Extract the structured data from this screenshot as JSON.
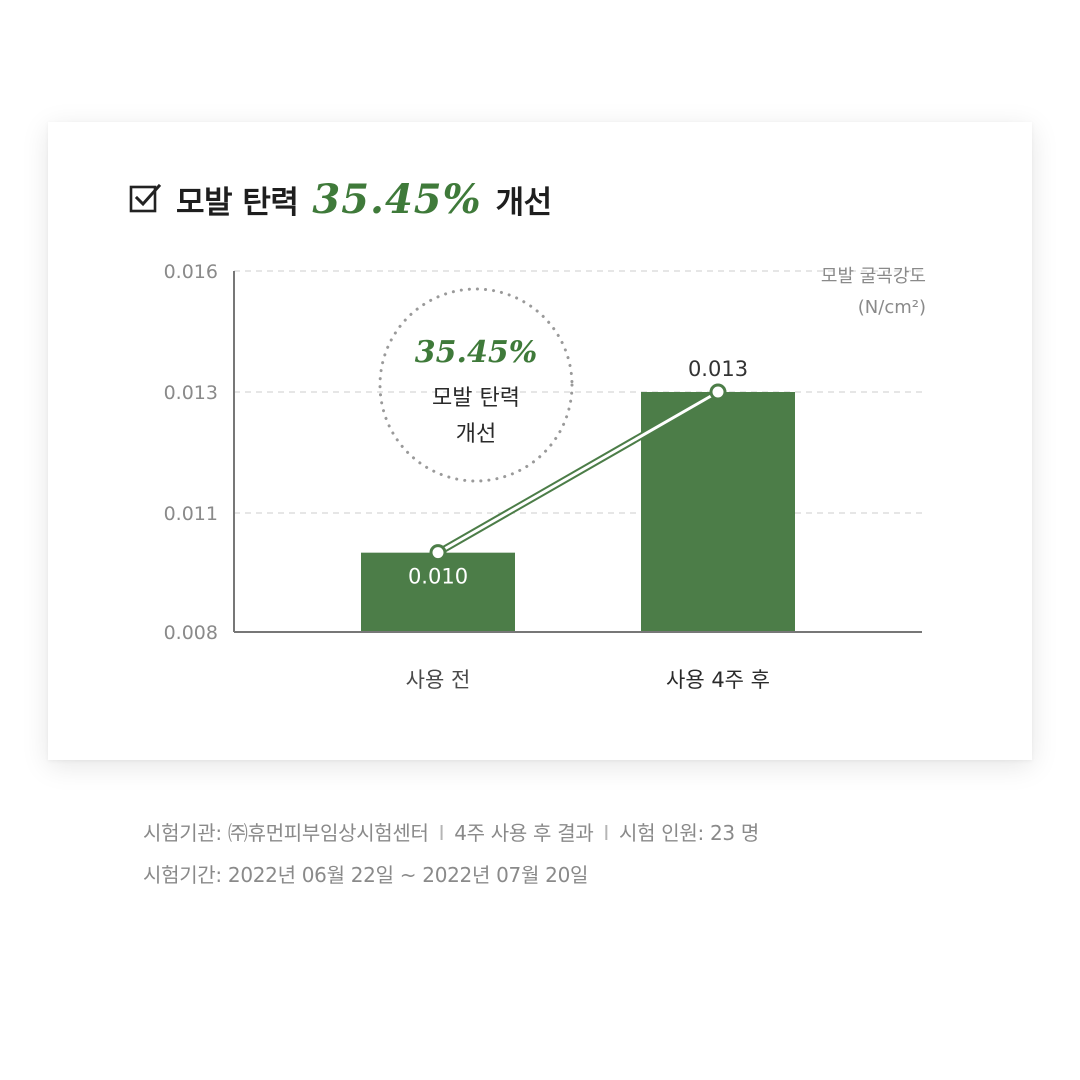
{
  "header": {
    "title_prefix": "모발 탄력",
    "title_value": "35.45%",
    "title_suffix": "개선"
  },
  "badge": {
    "value": "35.45%",
    "line1": "모발 탄력",
    "line2": "개선"
  },
  "chart_data": {
    "type": "bar",
    "categories": [
      "사용 전",
      "사용 4주 후"
    ],
    "values": [
      0.01,
      0.013
    ],
    "value_labels": [
      "0.010",
      "0.013"
    ],
    "yticks": [
      0.008,
      0.011,
      0.013,
      0.016
    ],
    "ytick_labels": [
      "0.008",
      "0.011",
      "0.013",
      "0.016"
    ],
    "ylim": [
      0.008,
      0.016
    ],
    "ylabel_line1": "모발 굴곡강도",
    "ylabel_line2": "(N/cm²)",
    "grid": true,
    "overlay_line": true,
    "bar_color": "#4c7d48",
    "line_color": "#4c7d48"
  },
  "footnotes": {
    "line1": {
      "institution": "시험기관: ㈜휴먼피부임상시험센터",
      "sep1": "I",
      "result": "4주 사용 후 결과",
      "sep2": "I",
      "subjects": "시험 인원: 23 명"
    },
    "line2": "시험기간: 2022년 06월 22일 ~ 2022년 07월 20일"
  }
}
